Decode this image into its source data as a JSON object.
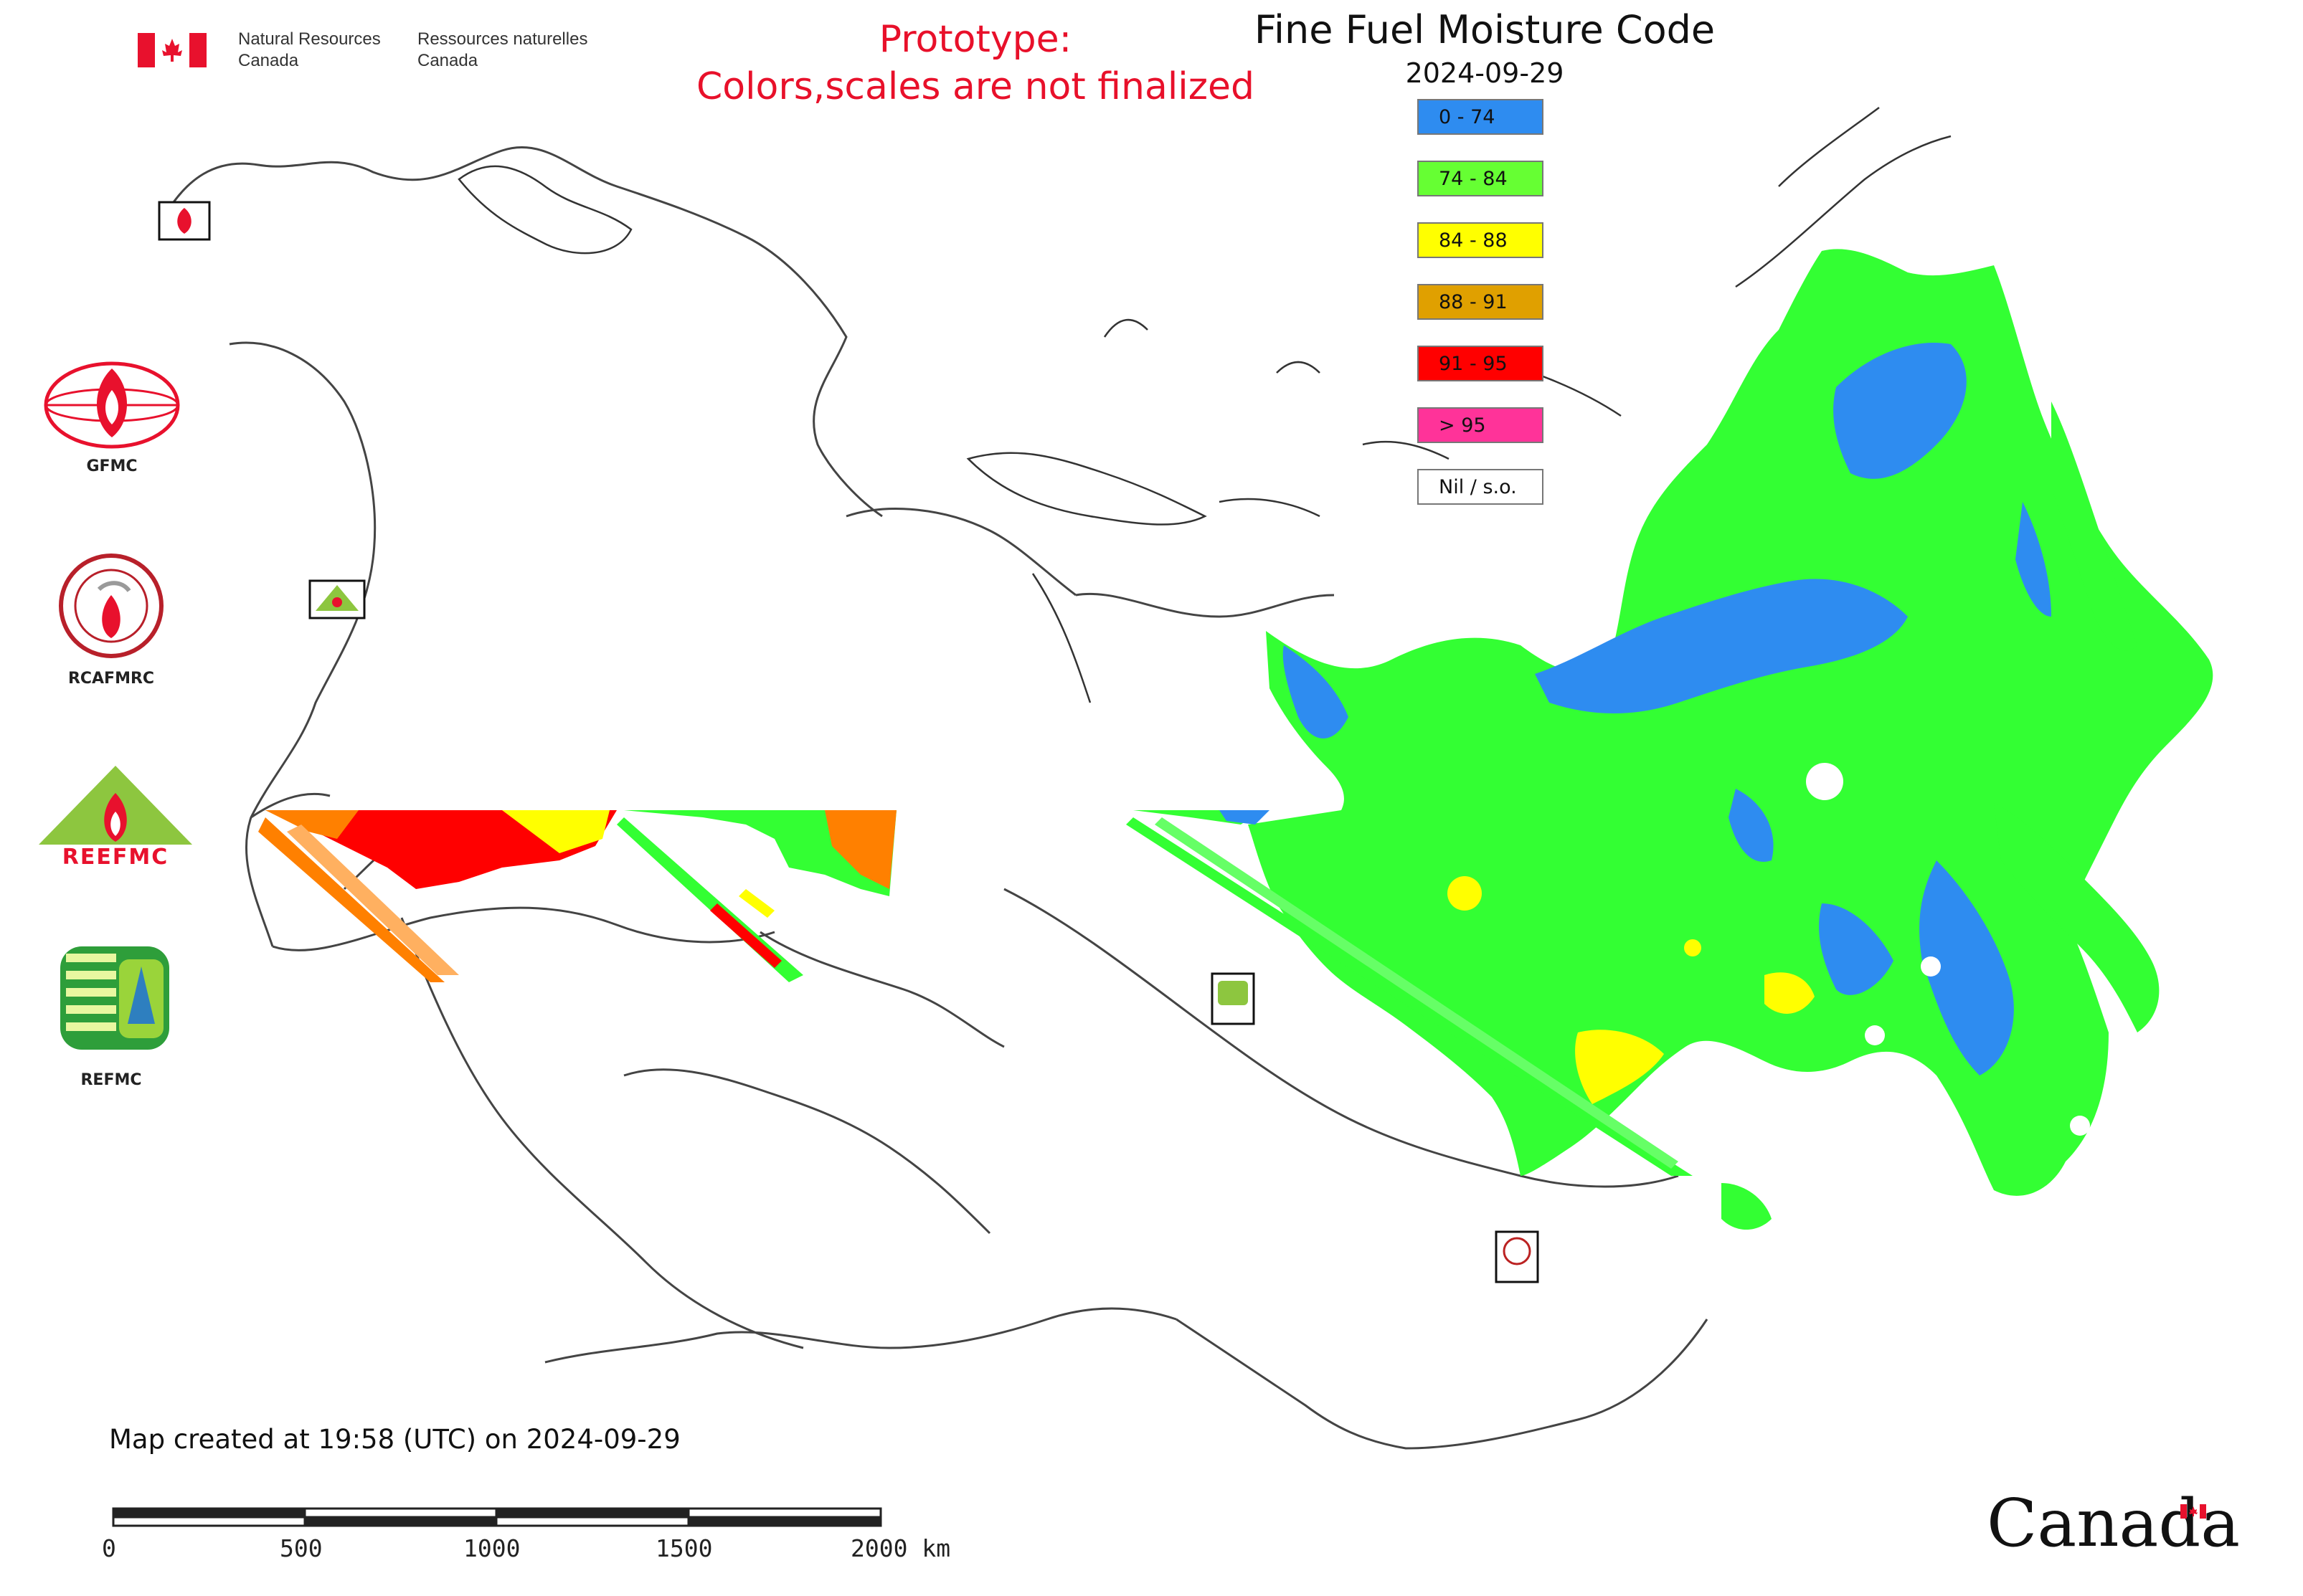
{
  "header": {
    "agency_en_line1": "Natural Resources",
    "agency_en_line2": "Canada",
    "agency_fr_line1": "Ressources naturelles",
    "agency_fr_line2": "Canada",
    "prototype_line1": "Prototype:",
    "prototype_line2": "Colors,scales are not finalized",
    "map_title": "Fine Fuel Moisture Code",
    "map_date": "2024-09-29"
  },
  "legend": {
    "items": [
      {
        "label": "0 - 74",
        "color": "#2e8cf0"
      },
      {
        "label": "74 - 84",
        "color": "#66ff33"
      },
      {
        "label": "84 - 88",
        "color": "#ffff00"
      },
      {
        "label": "88 - 91",
        "color": "#e0a000"
      },
      {
        "label": "91 - 95",
        "color": "#ff0000"
      },
      {
        "label": "> 95",
        "color": "#ff3399"
      },
      {
        "label": "Nil / s.o.",
        "color": "#ffffff"
      }
    ]
  },
  "logos": {
    "gfmc": "GFMC",
    "rcafmrc": "RCAFMRC",
    "reefmc_text": "REEFMC",
    "refmc": "REFMC"
  },
  "footer": {
    "created_text": "Map created at 19:58 (UTC) on 2024-09-29",
    "scale_labels": [
      "0",
      "500",
      "1000",
      "1500",
      "2000 km"
    ],
    "wordmark": "Canada"
  },
  "colors": {
    "prototype_red": "#e8102a",
    "flag_red": "#e8112d",
    "border_line": "#444444"
  }
}
